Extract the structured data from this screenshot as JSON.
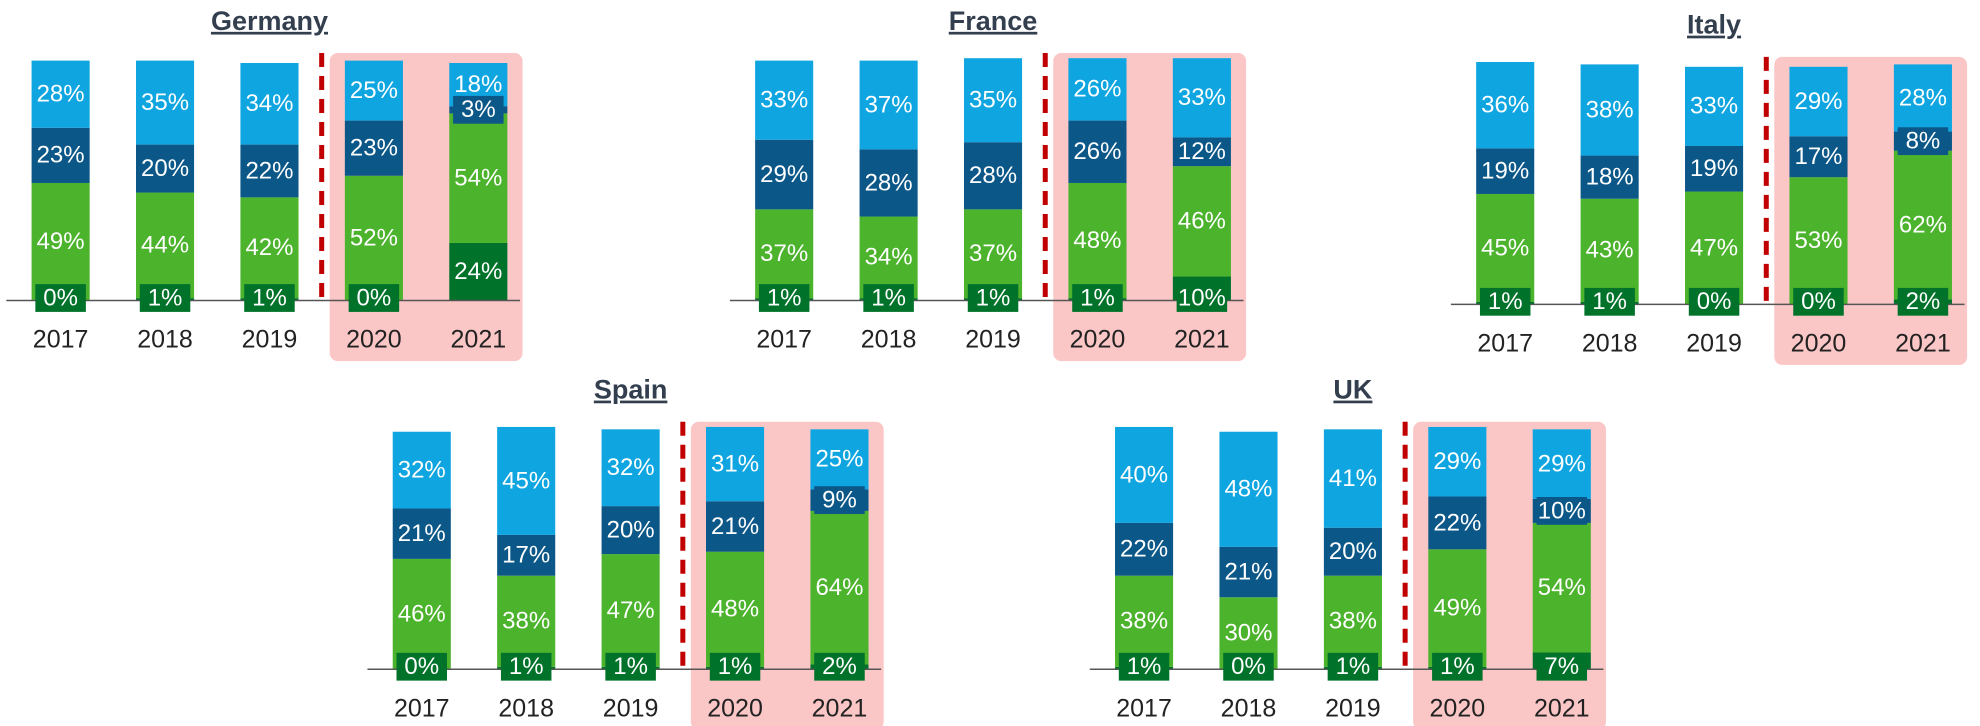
{
  "chart_data": [
    {
      "type": "bar",
      "stacked": true,
      "title": "Germany",
      "categories": [
        "2017",
        "2018",
        "2019",
        "2020",
        "2021"
      ],
      "ylim": [
        0,
        100
      ],
      "series": [
        {
          "color": "#00722a",
          "values": [
            0,
            1,
            1,
            0,
            24
          ],
          "value_labels": [
            "0%",
            "1%",
            "1%",
            "0%",
            "24%"
          ]
        },
        {
          "color": "#4cb32c",
          "values": [
            49,
            44,
            42,
            52,
            54
          ],
          "value_labels": [
            "49%",
            "44%",
            "42%",
            "52%",
            "54%"
          ]
        },
        {
          "color": "#0b5788",
          "values": [
            23,
            20,
            22,
            23,
            3
          ],
          "value_labels": [
            "23%",
            "20%",
            "22%",
            "23%",
            "3%"
          ]
        },
        {
          "color": "#0ea5e0",
          "values": [
            28,
            35,
            34,
            25,
            18
          ],
          "value_labels": [
            "28%",
            "35%",
            "34%",
            "25%",
            "18%"
          ]
        }
      ]
    },
    {
      "type": "bar",
      "stacked": true,
      "title": "France",
      "categories": [
        "2017",
        "2018",
        "2019",
        "2020",
        "2021"
      ],
      "ylim": [
        0,
        100
      ],
      "series": [
        {
          "color": "#00722a",
          "values": [
            1,
            1,
            1,
            1,
            10
          ],
          "value_labels": [
            "1%",
            "1%",
            "1%",
            "1%",
            "10%"
          ]
        },
        {
          "color": "#4cb32c",
          "values": [
            37,
            34,
            37,
            48,
            46
          ],
          "value_labels": [
            "37%",
            "34%",
            "37%",
            "48%",
            "46%"
          ]
        },
        {
          "color": "#0b5788",
          "values": [
            29,
            28,
            28,
            26,
            12
          ],
          "value_labels": [
            "29%",
            "28%",
            "28%",
            "26%",
            "12%"
          ]
        },
        {
          "color": "#0ea5e0",
          "values": [
            33,
            37,
            35,
            26,
            33
          ],
          "value_labels": [
            "33%",
            "37%",
            "35%",
            "26%",
            "33%"
          ]
        }
      ]
    },
    {
      "type": "bar",
      "stacked": true,
      "title": "Italy",
      "categories": [
        "2017",
        "2018",
        "2019",
        "2020",
        "2021"
      ],
      "ylim": [
        0,
        100
      ],
      "series": [
        {
          "color": "#00722a",
          "values": [
            1,
            1,
            0,
            0,
            2
          ],
          "value_labels": [
            "1%",
            "1%",
            "0%",
            "0%",
            "2%"
          ]
        },
        {
          "color": "#4cb32c",
          "values": [
            45,
            43,
            47,
            53,
            62
          ],
          "value_labels": [
            "45%",
            "43%",
            "47%",
            "53%",
            "62%"
          ]
        },
        {
          "color": "#0b5788",
          "values": [
            19,
            18,
            19,
            17,
            8
          ],
          "value_labels": [
            "19%",
            "18%",
            "19%",
            "17%",
            "8%"
          ]
        },
        {
          "color": "#0ea5e0",
          "values": [
            36,
            38,
            33,
            29,
            28
          ],
          "value_labels": [
            "36%",
            "38%",
            "33%",
            "29%",
            "28%"
          ]
        }
      ]
    },
    {
      "type": "bar",
      "stacked": true,
      "title": "Spain",
      "categories": [
        "2017",
        "2018",
        "2019",
        "2020",
        "2021"
      ],
      "ylim": [
        0,
        100
      ],
      "series": [
        {
          "color": "#00722a",
          "values": [
            0,
            1,
            1,
            1,
            2
          ],
          "value_labels": [
            "0%",
            "1%",
            "1%",
            "1%",
            "2%"
          ]
        },
        {
          "color": "#4cb32c",
          "values": [
            46,
            38,
            47,
            48,
            64
          ],
          "value_labels": [
            "46%",
            "38%",
            "47%",
            "48%",
            "64%"
          ]
        },
        {
          "color": "#0b5788",
          "values": [
            21,
            17,
            20,
            21,
            9
          ],
          "value_labels": [
            "21%",
            "17%",
            "20%",
            "21%",
            "9%"
          ]
        },
        {
          "color": "#0ea5e0",
          "values": [
            32,
            45,
            32,
            31,
            25
          ],
          "value_labels": [
            "32%",
            "45%",
            "32%",
            "31%",
            "25%"
          ]
        }
      ]
    },
    {
      "type": "bar",
      "stacked": true,
      "title": "UK",
      "categories": [
        "2017",
        "2018",
        "2019",
        "2020",
        "2021"
      ],
      "ylim": [
        0,
        100
      ],
      "series": [
        {
          "color": "#00722a",
          "values": [
            1,
            0,
            1,
            1,
            7
          ],
          "value_labels": [
            "1%",
            "0%",
            "1%",
            "1%",
            "7%"
          ]
        },
        {
          "color": "#4cb32c",
          "values": [
            38,
            30,
            38,
            49,
            54
          ],
          "value_labels": [
            "38%",
            "30%",
            "38%",
            "49%",
            "54%"
          ]
        },
        {
          "color": "#0b5788",
          "values": [
            22,
            21,
            20,
            22,
            10
          ],
          "value_labels": [
            "22%",
            "21%",
            "20%",
            "22%",
            "10%"
          ]
        },
        {
          "color": "#0ea5e0",
          "values": [
            40,
            48,
            41,
            29,
            29
          ],
          "value_labels": [
            "40%",
            "48%",
            "41%",
            "29%",
            "29%"
          ]
        }
      ]
    }
  ]
}
